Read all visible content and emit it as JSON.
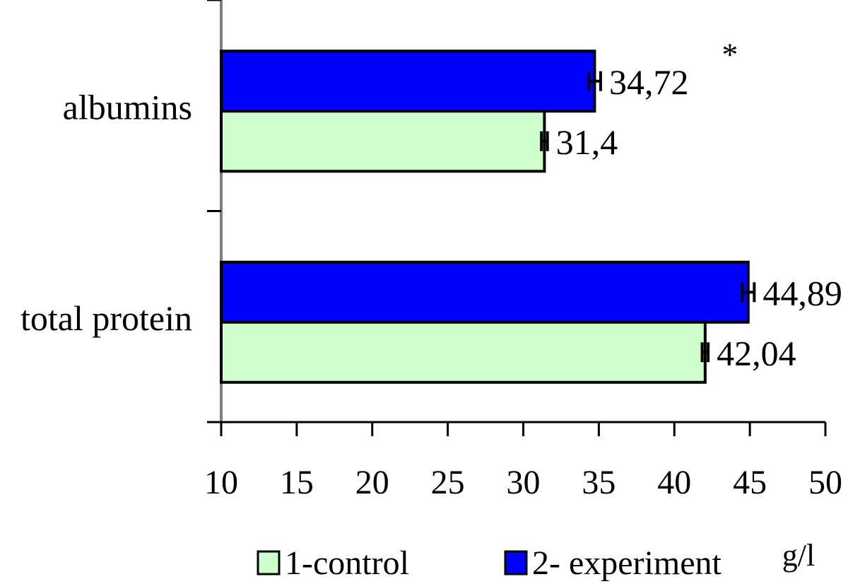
{
  "chart_data": {
    "type": "bar",
    "orientation": "horizontal",
    "categories": [
      "albumins",
      "total protein"
    ],
    "series": [
      {
        "name": "1-control",
        "color": "#ccffcc",
        "values": [
          31.4,
          42.04
        ],
        "errors": [
          0.2,
          0.2
        ],
        "value_labels": [
          "31,4",
          "42,04"
        ]
      },
      {
        "name": "2- experiment",
        "color": "#0000ff",
        "values": [
          34.72,
          44.89
        ],
        "errors": [
          0.4,
          0.4
        ],
        "value_labels": [
          "34,72",
          "44,89"
        ]
      }
    ],
    "annotations": [
      {
        "text": "*",
        "category": "albumins",
        "series": "2- experiment"
      }
    ],
    "xlim": [
      10,
      50
    ],
    "xticks": [
      10,
      15,
      20,
      25,
      30,
      35,
      40,
      45,
      50
    ],
    "xticklabels": [
      "10",
      "15",
      "20",
      "25",
      "30",
      "35",
      "40",
      "45",
      "50"
    ],
    "xlabel": "g/l",
    "ylabel": "",
    "title": "",
    "grid": false,
    "legend_position": "bottom"
  }
}
